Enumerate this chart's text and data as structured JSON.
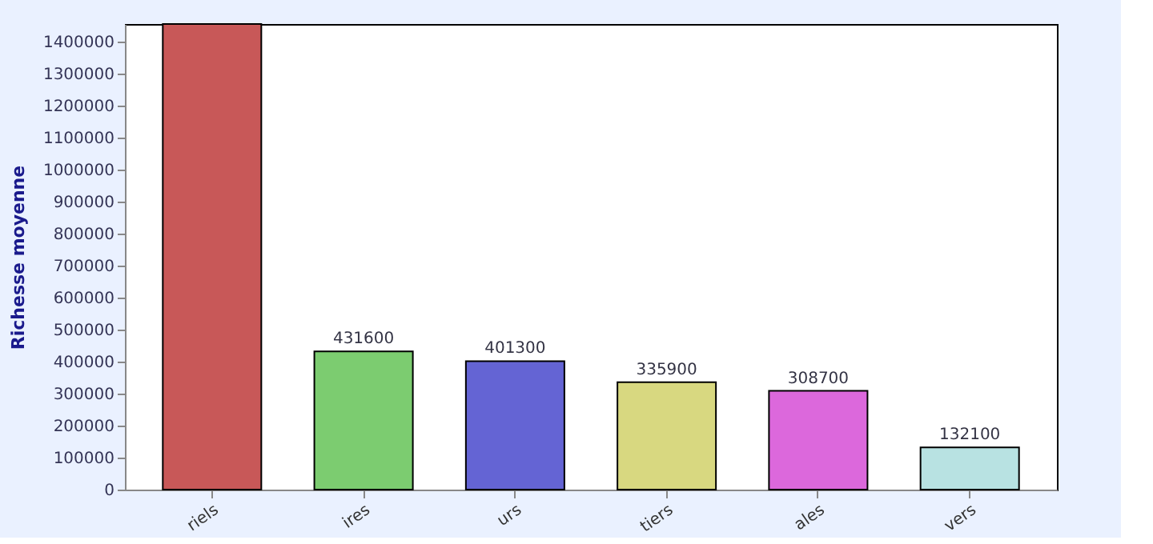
{
  "chart_data": {
    "type": "bar",
    "ylabel": "Richesse moyenne",
    "categories": [
      "riels",
      "ires",
      "urs",
      "tiers",
      "ales",
      "vers"
    ],
    "values": [
      1455000,
      431600,
      401300,
      335900,
      308700,
      132100
    ],
    "colors": [
      "#c85858",
      "#7ccc70",
      "#6464d4",
      "#d8d880",
      "#dc68dc",
      "#b8e2e2"
    ],
    "value_labels": [
      null,
      "431600",
      "401300",
      "335900",
      "308700",
      "132100"
    ],
    "ylim": [
      0,
      1455000
    ],
    "yticks": [
      0,
      100000,
      200000,
      300000,
      400000,
      500000,
      600000,
      700000,
      800000,
      900000,
      1000000,
      1100000,
      1200000,
      1300000,
      1400000
    ],
    "grid": false
  }
}
